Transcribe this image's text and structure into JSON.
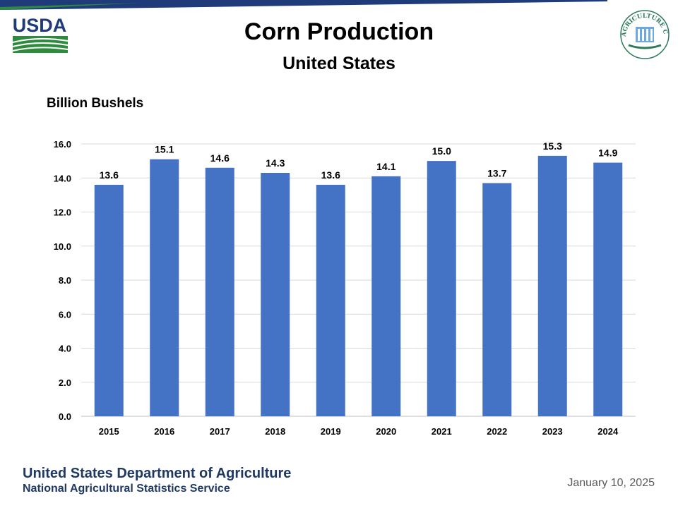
{
  "header": {
    "title": "Corn Production",
    "subtitle": "United States",
    "usda_logo_text": "USDA",
    "ag_counts_logo_text": "AGRICULTURE COUNTS"
  },
  "chart_data": {
    "type": "bar",
    "title": "Corn Production",
    "subtitle": "United States",
    "ylabel": "Billion Bushels",
    "xlabel": "",
    "categories": [
      "2015",
      "2016",
      "2017",
      "2018",
      "2019",
      "2020",
      "2021",
      "2022",
      "2023",
      "2024"
    ],
    "values": [
      13.6,
      15.1,
      14.6,
      14.3,
      13.6,
      14.1,
      15.0,
      13.7,
      15.3,
      14.9
    ],
    "data_labels": [
      "13.6",
      "15.1",
      "14.6",
      "14.3",
      "13.6",
      "14.1",
      "15.0",
      "13.7",
      "15.3",
      "14.9"
    ],
    "ylim": [
      0,
      16
    ],
    "yticks": [
      "0.0",
      "2.0",
      "4.0",
      "6.0",
      "8.0",
      "10.0",
      "12.0",
      "14.0",
      "16.0"
    ],
    "grid": true,
    "legend": "none",
    "bar_color": "#4472c4"
  },
  "footer": {
    "org": "United States Department of Agriculture",
    "agency": "National Agricultural Statistics Service",
    "date": "January 10, 2025"
  },
  "colors": {
    "bar": "#4472c4",
    "stripe_blue": "#1f3b7a",
    "stripe_green": "#2e8b3e",
    "footer_text": "#1f3864"
  }
}
